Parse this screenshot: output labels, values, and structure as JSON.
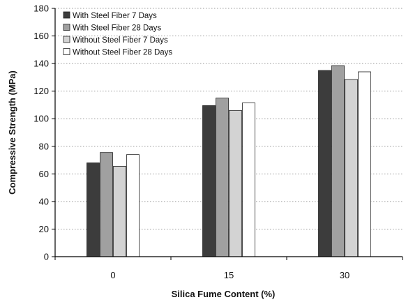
{
  "chart_data": {
    "type": "bar",
    "title": "",
    "xlabel": "Silica Fume Content (%)",
    "ylabel": "Compressive Strength (MPa)",
    "categories": [
      "0",
      "15",
      "30"
    ],
    "ylim": [
      0,
      180
    ],
    "yticks": [
      0,
      20,
      40,
      60,
      80,
      100,
      120,
      140,
      160,
      180
    ],
    "grid": "horizontal dotted",
    "legend_position": "top-left",
    "series": [
      {
        "name": "With Steel Fiber 7 Days",
        "color": "#3c3c3c",
        "values": [
          68,
          109.5,
          135
        ]
      },
      {
        "name": "With Steel Fiber 28 Days",
        "color": "#a0a0a0",
        "values": [
          75.5,
          115,
          138.5
        ]
      },
      {
        "name": "Without Steel Fiber 7 Days",
        "color": "#d3d3d3",
        "values": [
          65.5,
          106,
          128.5
        ]
      },
      {
        "name": "Without Steel Fiber 28 Days",
        "color": "#ffffff",
        "values": [
          74,
          111.5,
          134
        ]
      }
    ]
  }
}
